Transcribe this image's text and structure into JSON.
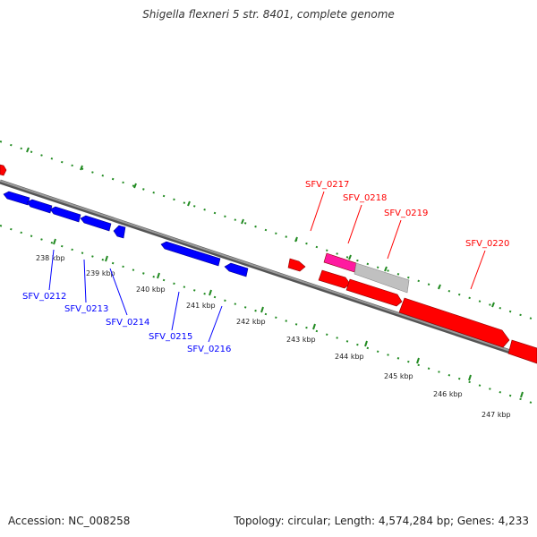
{
  "title": "Shigella flexneri 5 str. 8401, complete genome",
  "footer": {
    "accession": "Accession: NC_008258",
    "summary": "Topology: circular; Length: 4,574,284 bp; Genes: 4,233"
  },
  "colors": {
    "forward_gene": "#ff0000",
    "reverse_gene": "#0000ff",
    "pseudo_gene": "#c0c0c0",
    "highlight_gene": "#ff1aa0",
    "backbone": "#808080",
    "ticks": "#228b22"
  },
  "tick_labels": [
    "238 kbp",
    "239 kbp",
    "240 kbp",
    "241 kbp",
    "242 kbp",
    "243 kbp",
    "244 kbp",
    "245 kbp",
    "246 kbp",
    "247 kbp"
  ],
  "genes_reverse": [
    "SFV_0212",
    "SFV_0213",
    "SFV_0214",
    "SFV_0215",
    "SFV_0216"
  ],
  "genes_forward": [
    "SFV_0217",
    "SFV_0218",
    "SFV_0219",
    "SFV_0220"
  ]
}
